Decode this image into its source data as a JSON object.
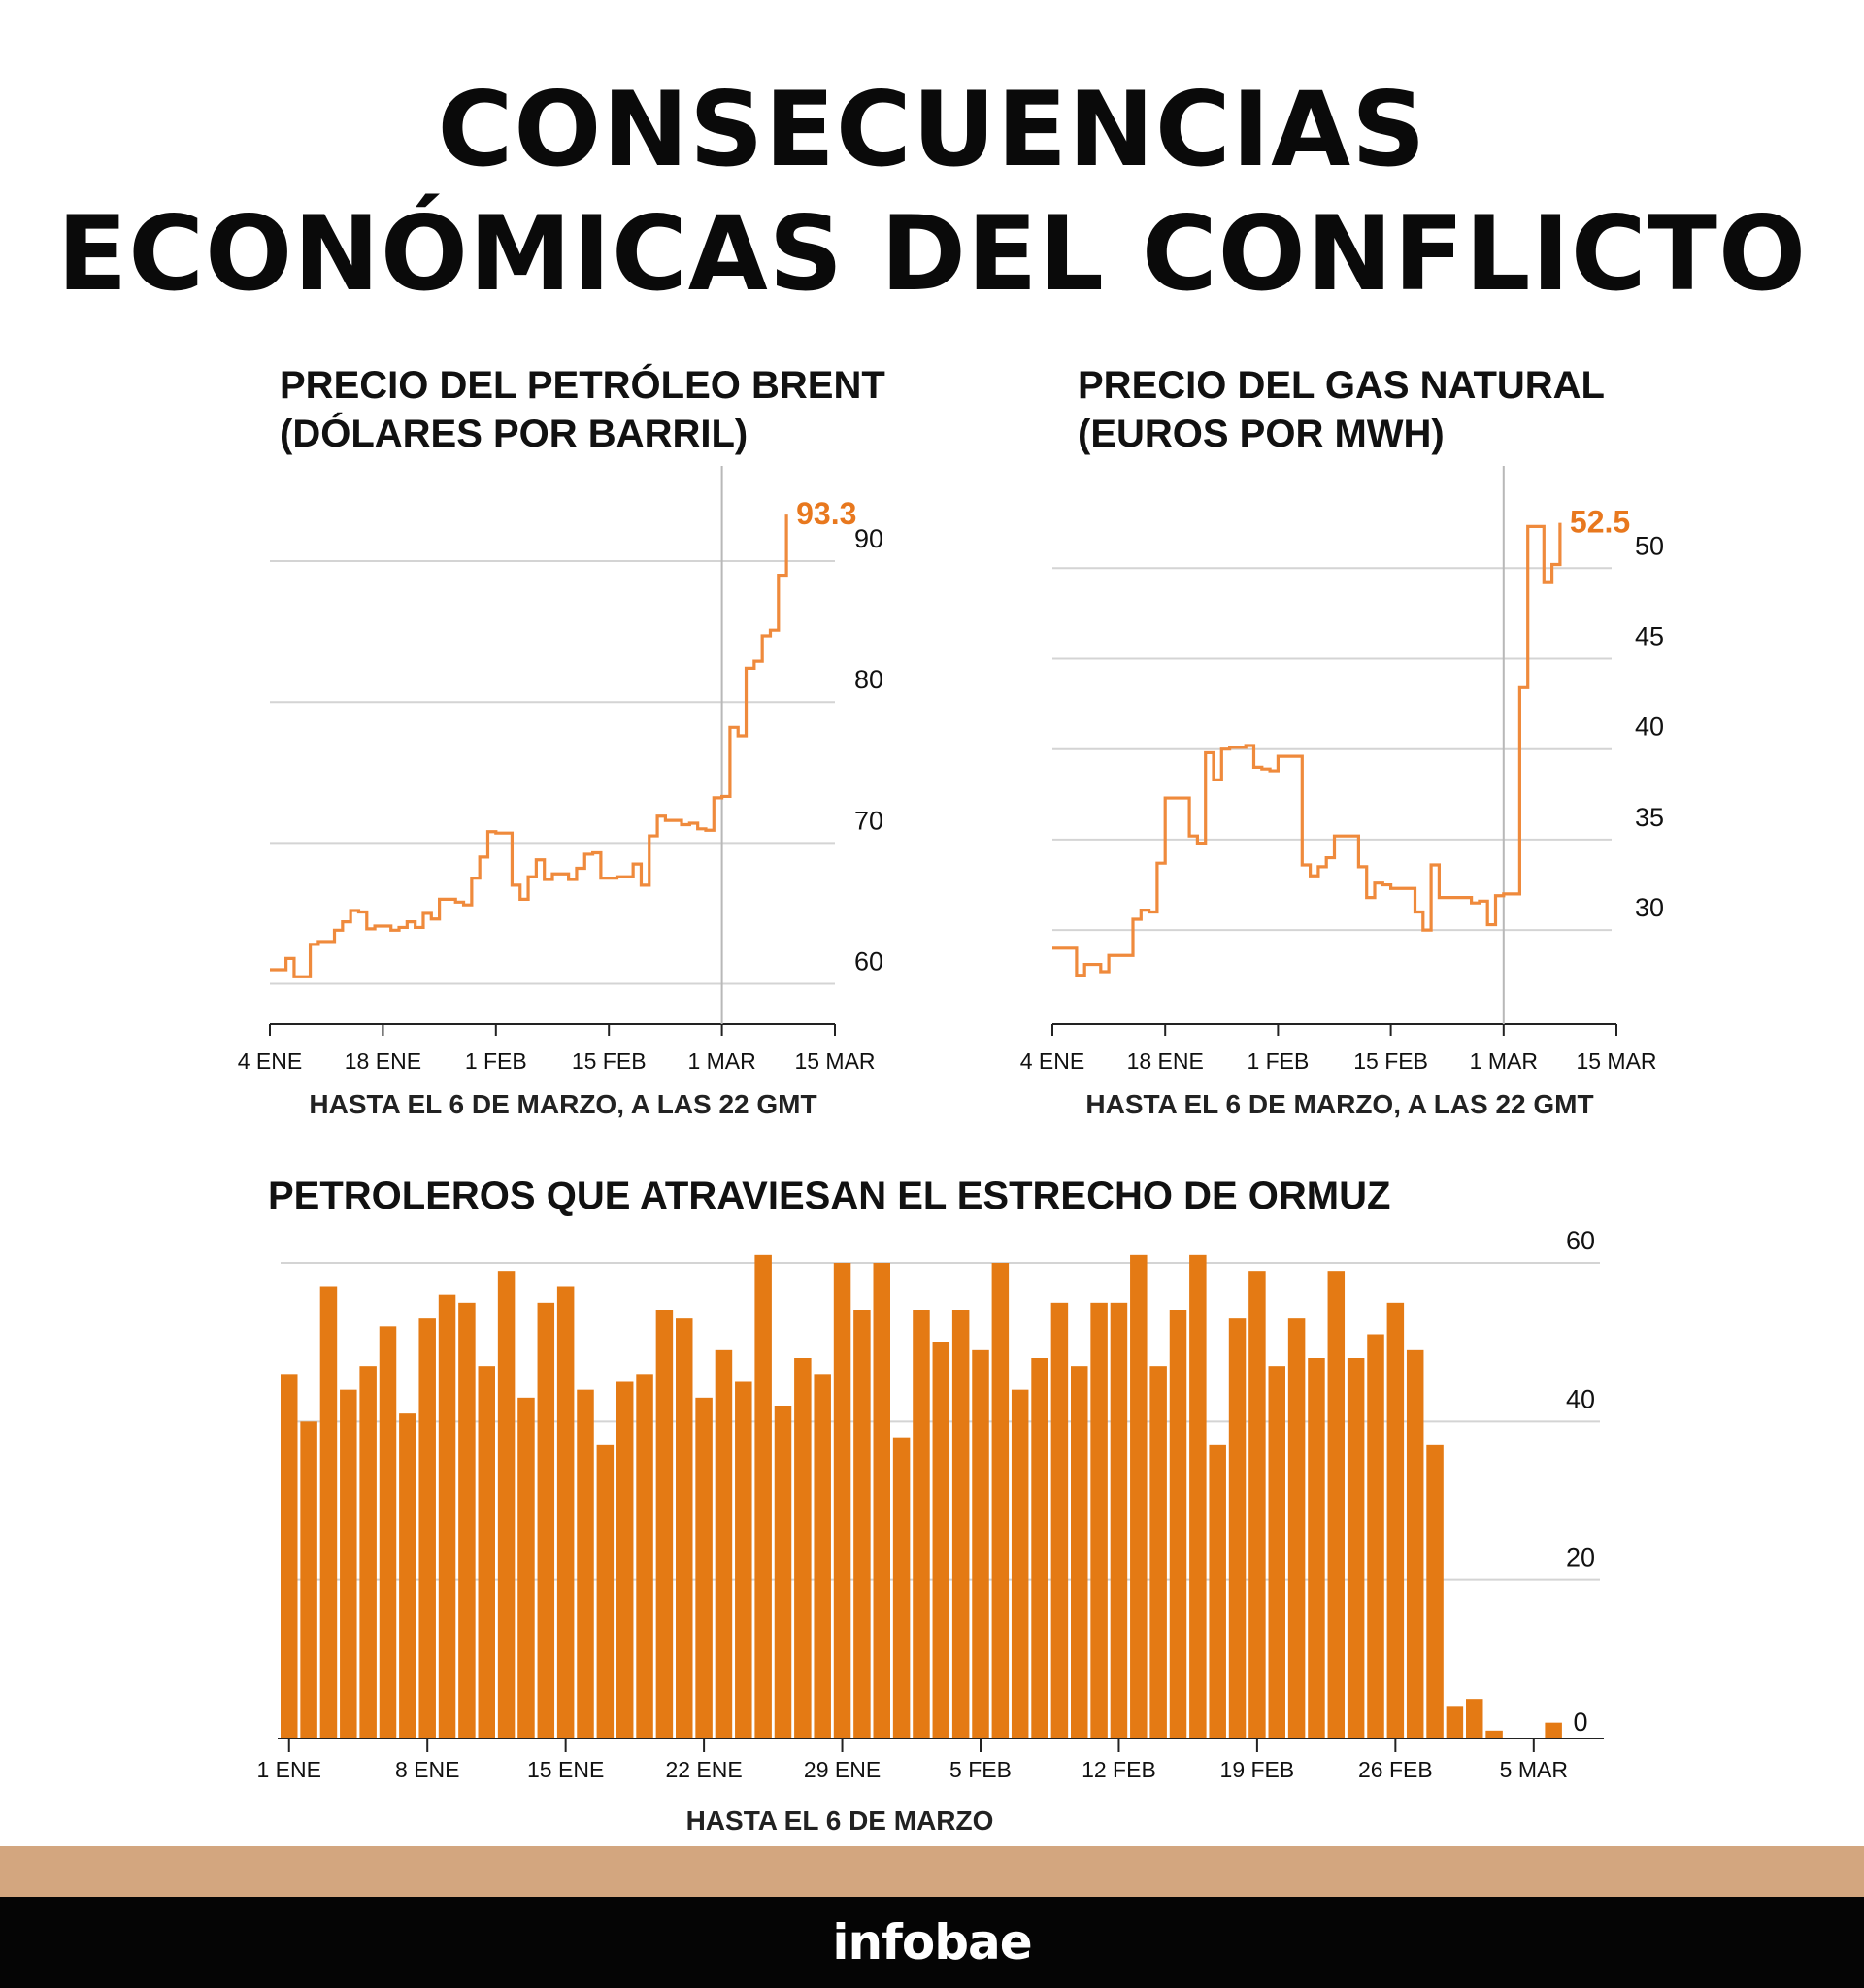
{
  "page": {
    "title_line1": "CONSECUENCIAS",
    "title_line2": "ECONÓMICAS DEL CONFLICTO",
    "brand": "infobae"
  },
  "colors": {
    "accent_line": "#ef8a3c",
    "accent_label": "#e8781e",
    "bar": "#e47a14",
    "grid": "#d4d4d4",
    "band": "#d3a67f",
    "footer": "#050505"
  },
  "chart_data": [
    {
      "type": "line",
      "title_line1": "PRECIO DEL PETRÓLEO BRENT",
      "title_line2": "(DÓLARES POR BARRIL)",
      "note": "HASTA EL 6 DE MARZO, A LAS 22 GMT",
      "end_label": "93.3",
      "x_ticks": [
        "4 ENE",
        "18 ENE",
        "1 FEB",
        "15 FEB",
        "1 MAR",
        "15 MAR"
      ],
      "x_tick_days": [
        4,
        18,
        32,
        46,
        60,
        74
      ],
      "y_ticks": [
        "60",
        "70",
        "80",
        "90"
      ],
      "y_tick_values": [
        60,
        70,
        80,
        90
      ],
      "xlim": [
        4,
        74
      ],
      "ylim": [
        59,
        94
      ],
      "marker_day": 60,
      "series": [
        {
          "x": [
            4,
            6,
            7,
            8,
            9,
            10,
            11,
            12,
            13,
            14,
            15,
            16,
            17,
            18,
            19,
            20,
            21,
            22,
            23,
            24,
            25,
            26,
            27,
            28,
            29,
            30,
            31,
            32,
            33,
            34,
            35,
            36,
            37,
            38,
            39,
            40,
            41,
            42,
            43,
            44,
            45,
            46,
            47,
            48,
            49,
            50,
            51,
            52,
            53,
            54,
            55,
            56,
            57,
            58,
            59,
            60,
            61,
            62,
            63,
            64,
            65,
            66,
            67,
            68
          ],
          "y": [
            61.0,
            61.8,
            60.5,
            60.5,
            62.8,
            63.0,
            63.0,
            63.8,
            64.4,
            65.2,
            65.1,
            63.9,
            64.1,
            64.1,
            63.8,
            64.0,
            64.4,
            64.0,
            65.0,
            64.6,
            66.0,
            66.0,
            65.8,
            65.6,
            67.5,
            69.0,
            70.8,
            70.7,
            70.7,
            67.0,
            66.0,
            67.6,
            68.8,
            67.4,
            67.8,
            67.8,
            67.4,
            68.2,
            69.2,
            69.3,
            67.5,
            67.5,
            67.6,
            67.6,
            68.5,
            67.0,
            70.5,
            71.9,
            71.6,
            71.6,
            71.3,
            71.4,
            71.0,
            70.9,
            73.2,
            73.3,
            78.2,
            77.6,
            82.4,
            82.9,
            84.7,
            85.1,
            89.0,
            93.3
          ]
        }
      ]
    },
    {
      "type": "line",
      "title_line1": "PRECIO DEL GAS NATURAL",
      "title_line2": "(EUROS POR MWH)",
      "note": "HASTA EL 6 DE MARZO, A LAS 22 GMT",
      "end_label": "52.5",
      "x_ticks": [
        "4 ENE",
        "18 ENE",
        "1 FEB",
        "15 FEB",
        "1 MAR",
        "15 MAR"
      ],
      "x_tick_days": [
        4,
        18,
        32,
        46,
        60,
        74
      ],
      "y_ticks": [
        "30",
        "35",
        "40",
        "45",
        "50"
      ],
      "y_tick_values": [
        30,
        35,
        40,
        45,
        50
      ],
      "xlim": [
        4,
        74
      ],
      "ylim": [
        26.2,
        53.5
      ],
      "marker_day": 60,
      "series": [
        {
          "x": [
            4,
            7,
            8,
            9,
            10,
            11,
            12,
            13,
            14,
            15,
            16,
            17,
            18,
            19,
            20,
            21,
            22,
            23,
            24,
            25,
            26,
            27,
            28,
            29,
            30,
            31,
            32,
            33,
            34,
            35,
            36,
            37,
            38,
            39,
            40,
            41,
            42,
            43,
            44,
            45,
            46,
            47,
            48,
            49,
            50,
            51,
            52,
            53,
            54,
            55,
            56,
            57,
            58,
            59,
            60,
            61,
            62,
            63,
            64,
            65,
            66,
            67
          ],
          "y": [
            29.0,
            27.5,
            28.1,
            28.1,
            27.7,
            28.6,
            28.6,
            28.6,
            30.6,
            31.1,
            31.0,
            33.7,
            37.3,
            37.3,
            37.3,
            35.2,
            34.8,
            39.8,
            38.3,
            40.0,
            40.1,
            40.1,
            40.2,
            39.0,
            38.9,
            38.8,
            39.6,
            39.6,
            39.6,
            33.6,
            33.0,
            33.5,
            34.0,
            35.2,
            35.2,
            35.2,
            33.5,
            31.8,
            32.6,
            32.5,
            32.3,
            32.3,
            32.3,
            31.0,
            30.0,
            33.6,
            31.8,
            31.8,
            31.8,
            31.8,
            31.5,
            31.6,
            30.3,
            31.9,
            32.0,
            32.0,
            43.4,
            52.3,
            52.3,
            49.2,
            50.2,
            52.5
          ]
        }
      ]
    },
    {
      "type": "bar",
      "title": "PETROLEROS QUE ATRAVIESAN EL ESTRECHO DE ORMUZ",
      "note": "HASTA EL 6 DE MARZO",
      "x_ticks": [
        "1 ENE",
        "8 ENE",
        "15 ENE",
        "22 ENE",
        "29 ENE",
        "5 FEB",
        "12 FEB",
        "19 FEB",
        "26 FEB",
        "5 MAR"
      ],
      "x_tick_days": [
        1,
        8,
        15,
        22,
        29,
        36,
        43,
        50,
        57,
        64
      ],
      "y_ticks": [
        "0",
        "20",
        "40",
        "60"
      ],
      "y_tick_values": [
        0,
        20,
        40,
        60
      ],
      "ylim": [
        0,
        60
      ],
      "values": [
        46,
        40,
        57,
        44,
        47,
        52,
        41,
        53,
        56,
        55,
        47,
        59,
        43,
        55,
        57,
        44,
        37,
        45,
        46,
        54,
        53,
        43,
        49,
        45,
        61,
        42,
        48,
        46,
        60,
        54,
        60,
        38,
        54,
        50,
        54,
        49,
        60,
        44,
        48,
        55,
        47,
        55,
        55,
        61,
        47,
        54,
        61,
        37,
        53,
        59,
        47,
        53,
        48,
        59,
        48,
        51,
        55,
        49,
        37,
        4,
        5,
        1,
        0,
        0,
        2,
        0
      ]
    }
  ]
}
